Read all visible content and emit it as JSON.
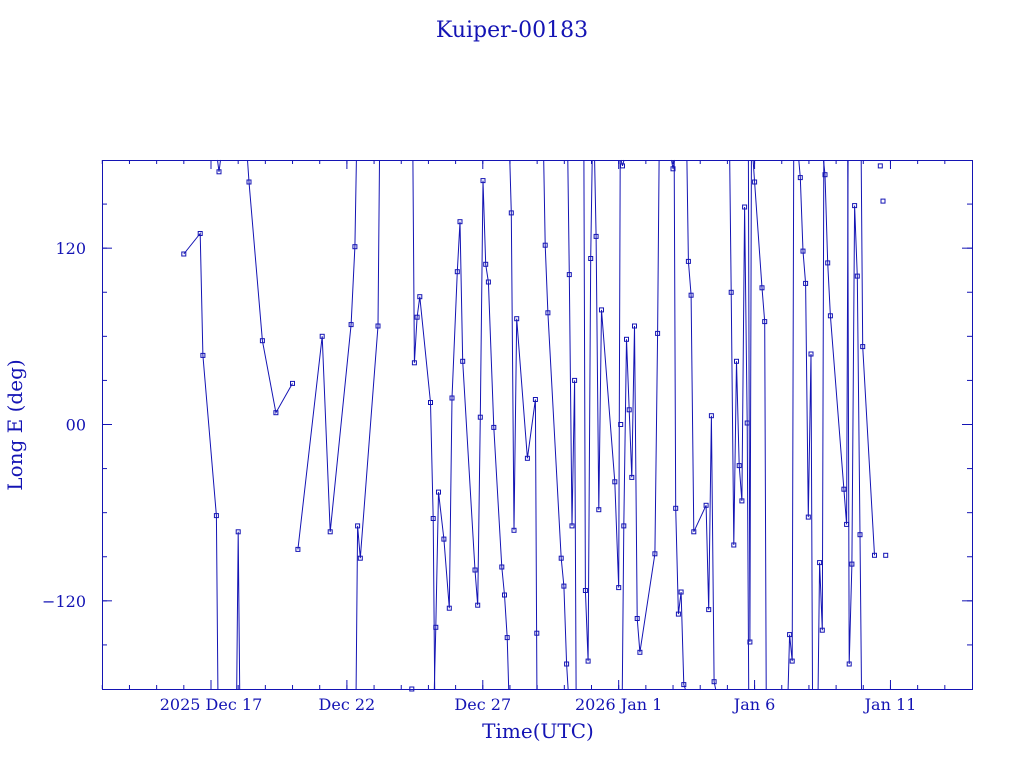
{
  "chart_data": {
    "type": "line",
    "title": "Kuiper-00183",
    "xlabel": "Time(UTC)",
    "ylabel": "Long E (deg)",
    "xlim": [
      "2025-12-12T23:45",
      "2026-01-14T00:00"
    ],
    "ylim": [
      -180,
      180
    ],
    "x_ticks": [
      {
        "label": "2025 Dec 17",
        "x": "2025-12-17"
      },
      {
        "label": "Dec 22",
        "x": "2025-12-22"
      },
      {
        "label": "Dec 27",
        "x": "2025-12-27"
      },
      {
        "label": "2026 Jan  1",
        "x": "2026-01-01"
      },
      {
        "label": "Jan  6",
        "x": "2026-01-06"
      },
      {
        "label": "Jan 11",
        "x": "2026-01-11"
      }
    ],
    "y_ticks": [
      {
        "label": "−120",
        "y": -120
      },
      {
        "label": "00",
        "y": 0
      },
      {
        "label": "120",
        "y": 120
      }
    ],
    "grid": false,
    "color": "#1414b4",
    "points": [
      {
        "x": "2025-12-16T00:00",
        "y": 116
      },
      {
        "x": "2025-12-16T14:30",
        "y": 130
      },
      {
        "x": "2025-12-16T16:52",
        "y": 47
      },
      {
        "x": "2025-12-17T04:44",
        "y": -62
      },
      {
        "x": "2025-12-17T07:06",
        "y": 172
      },
      {
        "x": "2025-12-18T00:00",
        "y": -73
      },
      {
        "x": "2025-12-18T09:36",
        "y": 165
      },
      {
        "x": "2025-12-18T21:26",
        "y": 57
      },
      {
        "x": "2025-12-19T09:17",
        "y": 8
      },
      {
        "x": "2025-12-20T00:00",
        "y": 28
      },
      {
        "x": "2025-12-20T04:44",
        "y": -85
      },
      {
        "x": "2025-12-21T02:13",
        "y": 60
      },
      {
        "x": "2025-12-21T09:17",
        "y": -73
      },
      {
        "x": "2025-12-22T03:42",
        "y": 68
      },
      {
        "x": "2025-12-22T07:06",
        "y": 121
      },
      {
        "x": "2025-12-22T09:29",
        "y": -69
      },
      {
        "x": "2025-12-22T11:51",
        "y": -91
      },
      {
        "x": "2025-12-23T03:27",
        "y": 67
      },
      {
        "x": "2025-12-24T09:17",
        "y": -180
      },
      {
        "x": "2025-12-24T11:39",
        "y": 42
      },
      {
        "x": "2025-12-24T14:01",
        "y": 73
      },
      {
        "x": "2025-12-24T16:23",
        "y": 87
      },
      {
        "x": "2025-12-25T01:49",
        "y": 15
      },
      {
        "x": "2025-12-25T04:11",
        "y": -64
      },
      {
        "x": "2025-12-25T06:33",
        "y": -138
      },
      {
        "x": "2025-12-25T08:55",
        "y": -46
      },
      {
        "x": "2025-12-25T13:40",
        "y": -78
      },
      {
        "x": "2025-12-25T18:25",
        "y": -125
      },
      {
        "x": "2025-12-25T20:47",
        "y": 18
      },
      {
        "x": "2025-12-26T01:32",
        "y": 104
      },
      {
        "x": "2025-12-26T03:54",
        "y": 138
      },
      {
        "x": "2025-12-26T06:16",
        "y": 43
      },
      {
        "x": "2025-12-26T17:07",
        "y": -99
      },
      {
        "x": "2025-12-26T19:29",
        "y": -123
      },
      {
        "x": "2025-12-26T21:51",
        "y": 5
      },
      {
        "x": "2025-12-27T00:14",
        "y": 166
      },
      {
        "x": "2025-12-27T02:36",
        "y": 109
      },
      {
        "x": "2025-12-27T04:58",
        "y": 97
      },
      {
        "x": "2025-12-27T09:43",
        "y": -2
      },
      {
        "x": "2025-12-27T16:48",
        "y": -97
      },
      {
        "x": "2025-12-27T19:10",
        "y": -116
      },
      {
        "x": "2025-12-27T21:32",
        "y": -145
      },
      {
        "x": "2025-12-28T01:12",
        "y": 144
      },
      {
        "x": "2025-12-28T03:34",
        "y": -72
      },
      {
        "x": "2025-12-28T05:57",
        "y": 72
      },
      {
        "x": "2025-12-28T15:25",
        "y": -23
      },
      {
        "x": "2025-12-28T22:30",
        "y": 17
      },
      {
        "x": "2025-12-28T23:42",
        "y": -142
      },
      {
        "x": "2025-12-29T07:06",
        "y": 122
      },
      {
        "x": "2025-12-29T09:28",
        "y": 76
      },
      {
        "x": "2025-12-29T21:16",
        "y": -91
      },
      {
        "x": "2025-12-29T23:38",
        "y": -110
      },
      {
        "x": "2025-12-30T02:01",
        "y": -163
      },
      {
        "x": "2025-12-30T04:23",
        "y": 102
      },
      {
        "x": "2025-12-30T06:45",
        "y": -69
      },
      {
        "x": "2025-12-30T09:07",
        "y": 30
      },
      {
        "x": "2025-12-30T18:36",
        "y": -113
      },
      {
        "x": "2025-12-30T20:58",
        "y": -161
      },
      {
        "x": "2025-12-30T23:20",
        "y": 113
      },
      {
        "x": "2025-12-31T04:04",
        "y": 128
      },
      {
        "x": "2025-12-31T06:26",
        "y": -58
      },
      {
        "x": "2025-12-31T08:49",
        "y": 78
      },
      {
        "x": "2025-12-31T20:37",
        "y": -39
      },
      {
        "x": "2026-01-01T00:00",
        "y": -111
      },
      {
        "x": "2026-01-01T01:46",
        "y": 0
      },
      {
        "x": "2026-01-01T03:23",
        "y": 176
      },
      {
        "x": "2026-01-01T04:31",
        "y": -69
      },
      {
        "x": "2026-01-01T06:53",
        "y": 58
      },
      {
        "x": "2026-01-01T09:15",
        "y": 10
      },
      {
        "x": "2026-01-01T11:37",
        "y": -36
      },
      {
        "x": "2026-01-01T14:00",
        "y": 67
      },
      {
        "x": "2026-01-01T16:22",
        "y": -132
      },
      {
        "x": "2026-01-01T18:44",
        "y": -155
      },
      {
        "x": "2026-01-02T07:58",
        "y": -88
      },
      {
        "x": "2026-01-02T10:20",
        "y": 62
      },
      {
        "x": "2026-01-03T00:00",
        "y": 174
      },
      {
        "x": "2026-01-03T02:22",
        "y": -57
      },
      {
        "x": "2026-01-03T04:44",
        "y": -129
      },
      {
        "x": "2026-01-03T07:06",
        "y": -114
      },
      {
        "x": "2026-01-03T09:28",
        "y": -177
      },
      {
        "x": "2026-01-03T13:35",
        "y": 111
      },
      {
        "x": "2026-01-03T15:57",
        "y": 88
      },
      {
        "x": "2026-01-03T18:20",
        "y": -73
      },
      {
        "x": "2026-01-04T05:10",
        "y": -55
      },
      {
        "x": "2026-01-04T07:32",
        "y": -126
      },
      {
        "x": "2026-01-04T09:54",
        "y": 6
      },
      {
        "x": "2026-01-04T12:16",
        "y": -175
      },
      {
        "x": "2026-01-05T03:20",
        "y": 90
      },
      {
        "x": "2026-01-05T05:42",
        "y": -82
      },
      {
        "x": "2026-01-05T08:04",
        "y": 43
      },
      {
        "x": "2026-01-05T10:26",
        "y": -28
      },
      {
        "x": "2026-01-05T12:48",
        "y": -52
      },
      {
        "x": "2026-01-05T15:10",
        "y": 148
      },
      {
        "x": "2026-01-05T17:32",
        "y": 1
      },
      {
        "x": "2026-01-05T19:54",
        "y": -148
      },
      {
        "x": "2026-01-06T00:00",
        "y": 165
      },
      {
        "x": "2026-01-06T06:35",
        "y": 93
      },
      {
        "x": "2026-01-06T08:57",
        "y": 70
      },
      {
        "x": "2026-01-07T06:54",
        "y": -143
      },
      {
        "x": "2026-01-07T09:16",
        "y": -161
      },
      {
        "x": "2026-01-07T16:22",
        "y": 168
      },
      {
        "x": "2026-01-07T18:44",
        "y": 118
      },
      {
        "x": "2026-01-07T21:06",
        "y": 96
      },
      {
        "x": "2026-01-07T23:28",
        "y": -63
      },
      {
        "x": "2026-01-08T01:50",
        "y": 48
      },
      {
        "x": "2026-01-08T09:27",
        "y": -94
      },
      {
        "x": "2026-01-08T11:49",
        "y": -140
      },
      {
        "x": "2026-01-08T14:11",
        "y": 170
      },
      {
        "x": "2026-01-08T16:33",
        "y": 110
      },
      {
        "x": "2026-01-08T18:55",
        "y": 74
      },
      {
        "x": "2026-01-09T06:52",
        "y": -44
      },
      {
        "x": "2026-01-09T09:14",
        "y": -68
      },
      {
        "x": "2026-01-09T11:36",
        "y": -163
      },
      {
        "x": "2026-01-09T13:58",
        "y": -95
      },
      {
        "x": "2026-01-09T16:20",
        "y": 149
      },
      {
        "x": "2026-01-09T18:43",
        "y": 101
      },
      {
        "x": "2026-01-09T21:05",
        "y": -75
      },
      {
        "x": "2026-01-09T23:27",
        "y": 53
      },
      {
        "x": "2026-01-10T09:53",
        "y": -89
      },
      {
        "x": "2026-01-10T15:01",
        "y": 176
      },
      {
        "x": "2026-01-10T17:23",
        "y": 152
      },
      {
        "x": "2026-01-10T19:45",
        "y": -89
      }
    ],
    "segments": [
      [
        [
          0,
          1
        ],
        [
          1,
          2
        ],
        [
          2,
          3
        ],
        [
          3,
          "B"
        ]
      ],
      [
        [
          "T",
          4
        ],
        [
          4,
          "T"
        ]
      ],
      [
        [
          "B",
          5
        ],
        [
          5,
          "B"
        ]
      ],
      [
        [
          "T",
          6
        ],
        [
          6,
          7
        ],
        [
          7,
          8
        ],
        [
          8,
          9
        ]
      ],
      [
        [
          10,
          11
        ],
        [
          11,
          12
        ],
        [
          12,
          13
        ],
        [
          13,
          14
        ],
        [
          14,
          "T"
        ]
      ],
      [
        [
          "B",
          15
        ],
        [
          15,
          16
        ],
        [
          16,
          17
        ],
        [
          17,
          "T"
        ]
      ],
      [
        [
          "T",
          19
        ],
        [
          19,
          20
        ],
        [
          20,
          21
        ],
        [
          21,
          22
        ],
        [
          22,
          23
        ],
        [
          23,
          "B"
        ]
      ],
      [
        [
          "B",
          24
        ],
        [
          24,
          25
        ],
        [
          25,
          26
        ],
        [
          26,
          27
        ],
        [
          27,
          28
        ],
        [
          28,
          29
        ],
        [
          29,
          30
        ],
        [
          30,
          31
        ],
        [
          31,
          32
        ],
        [
          32,
          33
        ],
        [
          33,
          34
        ],
        [
          34,
          35
        ],
        [
          35,
          36
        ],
        [
          36,
          37
        ],
        [
          37,
          38
        ],
        [
          38,
          39
        ],
        [
          39,
          40
        ],
        [
          40,
          41
        ],
        [
          41,
          "B"
        ]
      ],
      [
        [
          "T",
          42
        ],
        [
          42,
          43
        ],
        [
          43,
          44
        ],
        [
          44,
          45
        ],
        [
          45,
          46
        ],
        [
          46,
          "B"
        ]
      ],
      [
        [
          "T",
          48
        ],
        [
          48,
          49
        ],
        [
          49,
          50
        ],
        [
          50,
          51
        ],
        [
          51,
          52
        ],
        [
          52,
          "B"
        ]
      ],
      [
        [
          "T",
          53
        ],
        [
          53,
          54
        ],
        [
          54,
          55
        ],
        [
          55,
          "B"
        ]
      ],
      [
        [
          "T",
          56
        ],
        [
          56,
          57
        ],
        [
          57,
          58
        ],
        [
          58,
          "T"
        ]
      ],
      [
        [
          "T",
          59
        ],
        [
          59,
          60
        ],
        [
          60,
          61
        ],
        [
          61,
          62
        ],
        [
          62,
          63
        ],
        [
          63,
          "T"
        ]
      ],
      [
        [
          "T",
          65
        ],
        [
          65,
          "T"
        ]
      ],
      [
        [
          "B",
          66
        ],
        [
          66,
          67
        ],
        [
          67,
          68
        ],
        [
          68,
          69
        ],
        [
          69,
          70
        ],
        [
          70,
          71
        ],
        [
          71,
          72
        ],
        [
          72,
          73
        ],
        [
          73,
          74
        ],
        [
          74,
          "T"
        ]
      ],
      [
        [
          "T",
          75
        ],
        [
          75,
          "T"
        ]
      ],
      [
        [
          "T",
          76
        ],
        [
          76,
          77
        ],
        [
          77,
          78
        ],
        [
          78,
          79
        ],
        [
          79,
          "B"
        ]
      ],
      [
        [
          "T",
          80
        ],
        [
          80,
          81
        ],
        [
          81,
          82
        ],
        [
          82,
          83
        ],
        [
          83,
          84
        ],
        [
          84,
          85
        ],
        [
          85,
          86
        ],
        [
          86,
          "B"
        ]
      ],
      [
        [
          "T",
          87
        ],
        [
          87,
          88
        ],
        [
          88,
          89
        ],
        [
          89,
          90
        ],
        [
          90,
          91
        ],
        [
          91,
          92
        ],
        [
          92,
          93
        ],
        [
          93,
          "B"
        ]
      ],
      [
        [
          "T",
          94
        ],
        [
          94,
          "T"
        ]
      ],
      [
        [
          "T",
          95
        ],
        [
          95,
          96
        ],
        [
          96,
          97
        ],
        [
          97,
          "B"
        ]
      ],
      [
        [
          "B",
          98
        ],
        [
          98,
          99
        ],
        [
          99,
          "T"
        ]
      ],
      [
        [
          "T",
          100
        ],
        [
          100,
          101
        ],
        [
          101,
          102
        ],
        [
          102,
          103
        ],
        [
          103,
          104
        ],
        [
          104,
          "B"
        ]
      ],
      [
        [
          "B",
          105
        ],
        [
          105,
          106
        ],
        [
          106,
          "T"
        ]
      ],
      [
        [
          "T",
          107
        ],
        [
          107,
          108
        ],
        [
          108,
          109
        ],
        [
          109,
          110
        ],
        [
          110,
          111
        ],
        [
          111,
          "T"
        ]
      ],
      [
        [
          "T",
          112
        ],
        [
          112,
          113
        ],
        [
          113,
          114
        ],
        [
          114,
          115
        ],
        [
          115,
          116
        ],
        [
          116,
          "B"
        ]
      ],
      [
        [
          "T",
          117
        ],
        [
          117,
          118
        ]
      ]
    ]
  }
}
